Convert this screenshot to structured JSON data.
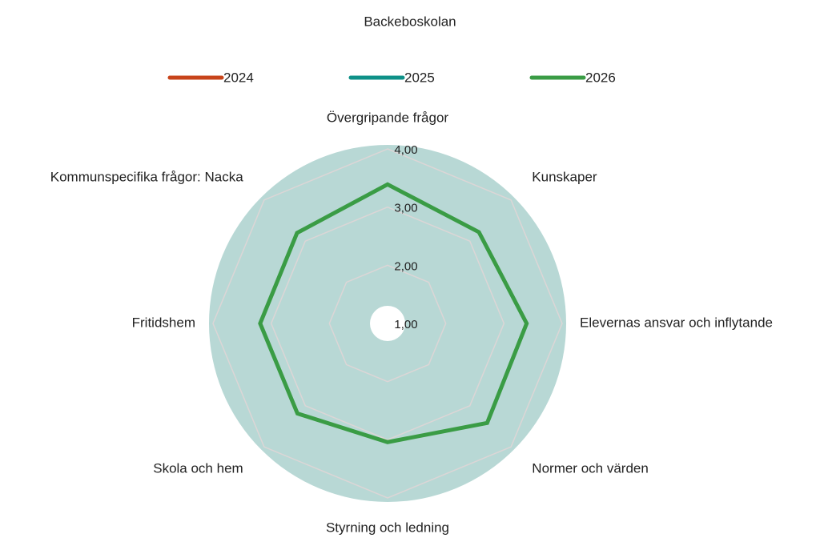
{
  "chart_data": {
    "type": "radar",
    "title": "Backeboskolan",
    "categories": [
      "Övergripande frågor",
      "Kunskaper",
      "Elevernas ansvar och inflytande",
      "Normer och värden",
      "Styrning och ledning",
      "Skola och hem",
      "Fritidshem",
      "Kommunspecifika frågor: Nacka"
    ],
    "series": [
      {
        "name": "2024",
        "color": "#c8441a",
        "values": [
          null,
          null,
          null,
          null,
          null,
          null,
          null,
          null
        ]
      },
      {
        "name": "2025",
        "color": "#0e9188",
        "values": [
          null,
          null,
          null,
          null,
          null,
          null,
          null,
          null
        ]
      },
      {
        "name": "2026",
        "color": "#3a9c45",
        "values": [
          3.39,
          3.22,
          3.39,
          3.42,
          3.04,
          3.19,
          3.19,
          3.2
        ]
      }
    ],
    "ylim": [
      1,
      4
    ],
    "yticks": [
      {
        "value": 1,
        "label": "1,00"
      },
      {
        "value": 2,
        "label": "2,00"
      },
      {
        "value": 3,
        "label": "3,00"
      },
      {
        "value": 4,
        "label": "4,00"
      }
    ],
    "grid": true
  }
}
